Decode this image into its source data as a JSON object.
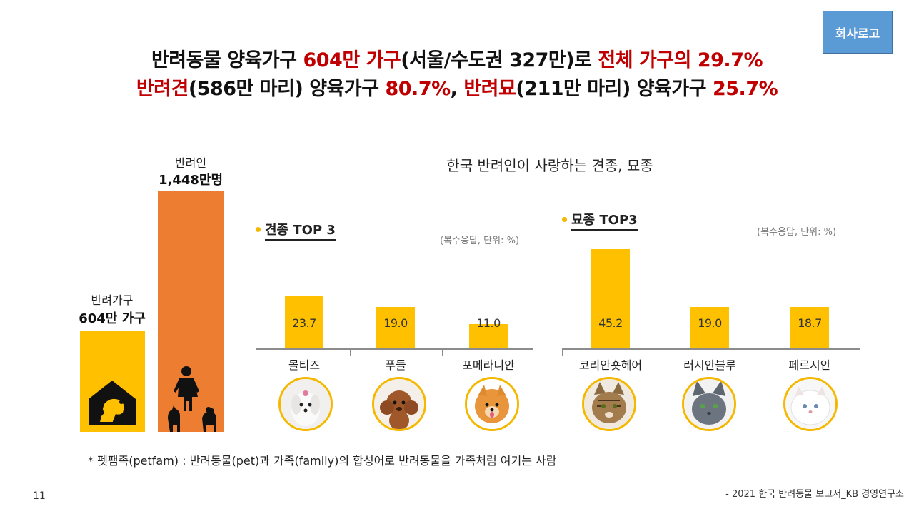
{
  "logo": {
    "label": "회사로고"
  },
  "headline": {
    "line1": [
      {
        "text": "반려동물 양육가구 ",
        "red": false
      },
      {
        "text": "604만 가구",
        "red": true
      },
      {
        "text": "(서울/수도권 327만)로 ",
        "red": false
      },
      {
        "text": "전체 가구의 29.7%",
        "red": true
      }
    ],
    "line2": [
      {
        "text": "반려견",
        "red": true
      },
      {
        "text": "(586만 마리) 양육가구 ",
        "red": false
      },
      {
        "text": "80.7%",
        "red": true
      },
      {
        "text": ", ",
        "red": false
      },
      {
        "text": "반려묘",
        "red": true
      },
      {
        "text": "(211만 마리) 양육가구 ",
        "red": false
      },
      {
        "text": "25.7%",
        "red": true
      }
    ]
  },
  "left_bars": {
    "households_label": "반려가구",
    "households_value": "604만 가구",
    "people_label": "반려인",
    "people_value": "1,448만명",
    "colors": {
      "households": "#ffc000",
      "people": "#ed7d31"
    }
  },
  "breed_chart": {
    "title": "한국 반려인이 사랑하는 견종, 묘종",
    "dog_heading": "견종 TOP 3",
    "cat_heading": "묘종 TOP3",
    "unit_note": "(복수응답, 단위: %)"
  },
  "chart_data": [
    {
      "type": "bar",
      "title": "견종 TOP 3",
      "categories": [
        "몰티즈",
        "푸들",
        "포메라니안"
      ],
      "values": [
        23.7,
        19.0,
        11.0
      ],
      "value_labels": [
        "23.7",
        "19.0",
        "11.0"
      ],
      "ylim": [
        0,
        50
      ]
    },
    {
      "type": "bar",
      "title": "묘종 TOP3",
      "categories": [
        "코리안숏헤어",
        "러시안블루",
        "페르시안"
      ],
      "values": [
        45.2,
        19.0,
        18.7
      ],
      "value_labels": [
        "45.2",
        "19.0",
        "18.7"
      ],
      "ylim": [
        0,
        50
      ]
    }
  ],
  "footnote": "* 펫팸족(petfam) :  반려동물(pet)과 가족(family)의 합성어로 반려동물을 가족처럼 여기는 사람",
  "page_number": "11",
  "source": "- 2021 한국 반려동물 보고서_KB 경영연구소"
}
